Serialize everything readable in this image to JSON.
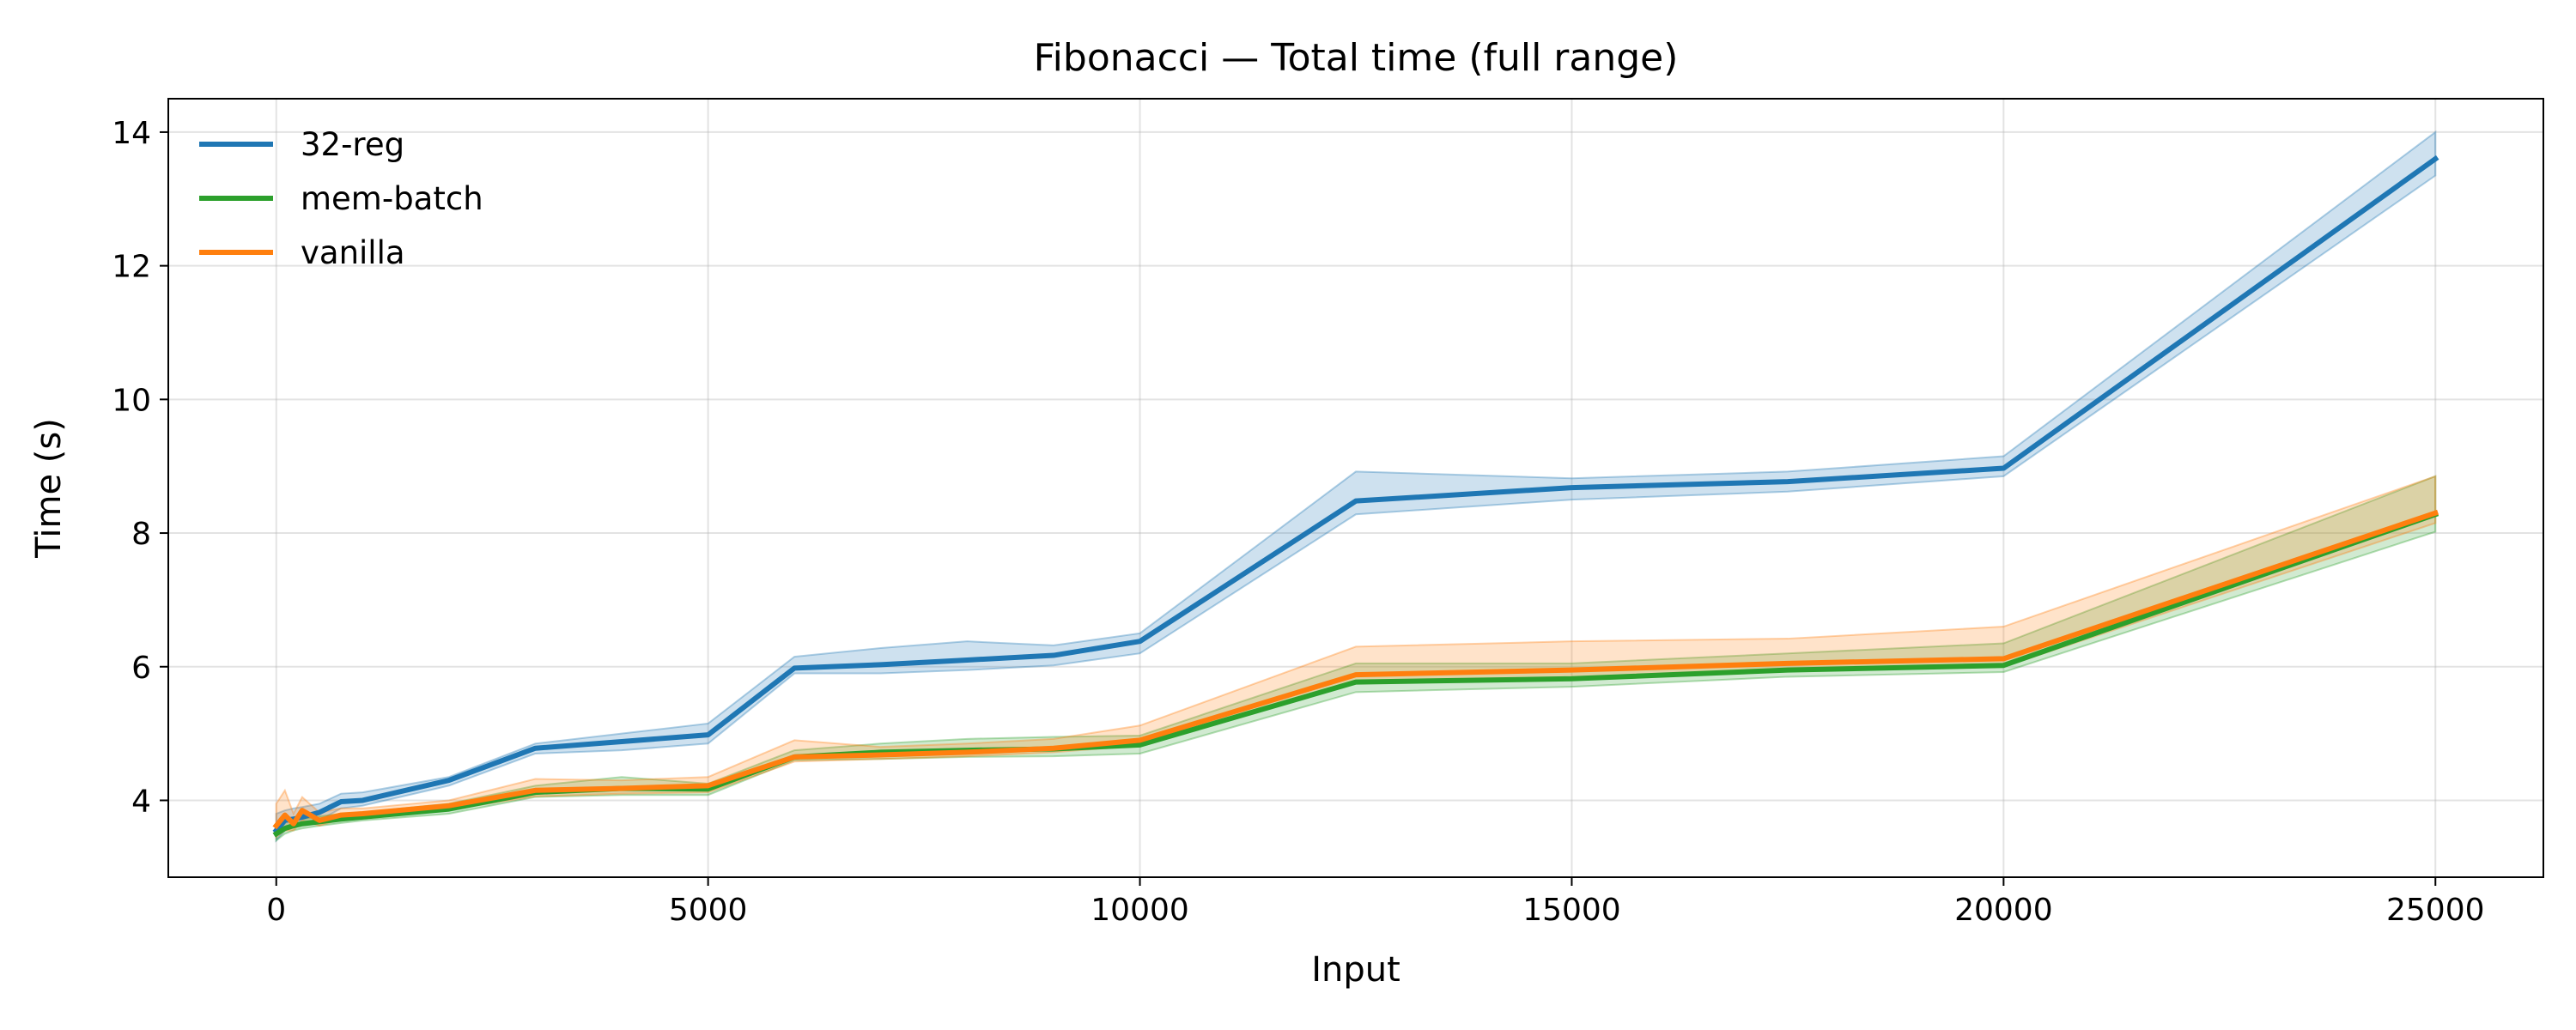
{
  "chart_data": {
    "type": "line",
    "title": "Fibonacci — Total time (full range)",
    "xlabel": "Input",
    "ylabel": "Time (s)",
    "xlim": [
      -1250,
      26250
    ],
    "ylim": [
      2.85,
      14.5
    ],
    "xticks": [
      0,
      5000,
      10000,
      15000,
      20000,
      25000
    ],
    "yticks": [
      4,
      6,
      8,
      10,
      12,
      14
    ],
    "grid": true,
    "legend_position": "top-left",
    "series": [
      {
        "name": "32-reg",
        "color": "#1f77b4",
        "x": [
          0,
          100,
          200,
          300,
          500,
          750,
          1000,
          2000,
          3000,
          4000,
          5000,
          6000,
          7000,
          8000,
          9000,
          10000,
          12500,
          15000,
          17500,
          20000,
          25000
        ],
        "y": [
          3.55,
          3.7,
          3.72,
          3.75,
          3.82,
          3.98,
          4.0,
          4.3,
          4.78,
          4.88,
          4.98,
          5.98,
          6.03,
          6.1,
          6.17,
          6.38,
          8.48,
          8.68,
          8.77,
          8.97,
          13.6
        ],
        "lower": [
          3.4,
          3.55,
          3.6,
          3.65,
          3.7,
          3.88,
          3.92,
          4.22,
          4.7,
          4.75,
          4.85,
          5.9,
          5.9,
          5.95,
          6.02,
          6.2,
          8.28,
          8.5,
          8.62,
          8.85,
          13.35
        ],
        "upper": [
          3.8,
          3.85,
          3.88,
          3.9,
          3.95,
          4.1,
          4.12,
          4.35,
          4.85,
          5.0,
          5.15,
          6.15,
          6.28,
          6.38,
          6.32,
          6.5,
          8.92,
          8.82,
          8.92,
          9.15,
          14.0
        ]
      },
      {
        "name": "mem-batch",
        "color": "#2ca02c",
        "x": [
          0,
          100,
          200,
          300,
          500,
          750,
          1000,
          2000,
          3000,
          4000,
          5000,
          6000,
          7000,
          8000,
          9000,
          10000,
          12500,
          15000,
          17500,
          20000,
          25000
        ],
        "y": [
          3.5,
          3.58,
          3.62,
          3.65,
          3.68,
          3.72,
          3.75,
          3.87,
          4.12,
          4.18,
          4.17,
          4.65,
          4.72,
          4.75,
          4.77,
          4.83,
          5.77,
          5.82,
          5.95,
          6.02,
          8.28
        ],
        "lower": [
          3.4,
          3.5,
          3.55,
          3.58,
          3.62,
          3.66,
          3.7,
          3.8,
          4.05,
          4.08,
          4.08,
          4.6,
          4.62,
          4.65,
          4.66,
          4.7,
          5.62,
          5.7,
          5.85,
          5.92,
          8.02
        ],
        "upper": [
          3.65,
          3.68,
          3.7,
          3.72,
          3.76,
          3.8,
          3.82,
          3.95,
          4.22,
          4.35,
          4.25,
          4.75,
          4.85,
          4.92,
          4.95,
          4.97,
          6.05,
          6.05,
          6.2,
          6.35,
          8.85
        ]
      },
      {
        "name": "vanilla",
        "color": "#ff7f0e",
        "x": [
          0,
          100,
          200,
          300,
          500,
          750,
          1000,
          2000,
          3000,
          4000,
          5000,
          6000,
          7000,
          8000,
          9000,
          10000,
          12500,
          15000,
          17500,
          20000,
          25000
        ],
        "y": [
          3.62,
          3.78,
          3.65,
          3.85,
          3.7,
          3.78,
          3.8,
          3.92,
          4.15,
          4.18,
          4.22,
          4.65,
          4.68,
          4.72,
          4.78,
          4.9,
          5.88,
          5.95,
          6.05,
          6.12,
          8.3
        ],
        "lower": [
          3.45,
          3.55,
          3.55,
          3.7,
          3.62,
          3.72,
          3.74,
          3.86,
          4.06,
          4.1,
          4.12,
          4.58,
          4.62,
          4.66,
          4.72,
          4.82,
          5.75,
          5.8,
          5.95,
          6.0,
          8.15
        ],
        "upper": [
          3.95,
          4.15,
          3.8,
          4.05,
          3.82,
          3.88,
          3.88,
          4.0,
          4.32,
          4.3,
          4.35,
          4.9,
          4.8,
          4.85,
          4.92,
          5.12,
          6.3,
          6.38,
          6.42,
          6.6,
          8.85
        ]
      }
    ]
  }
}
